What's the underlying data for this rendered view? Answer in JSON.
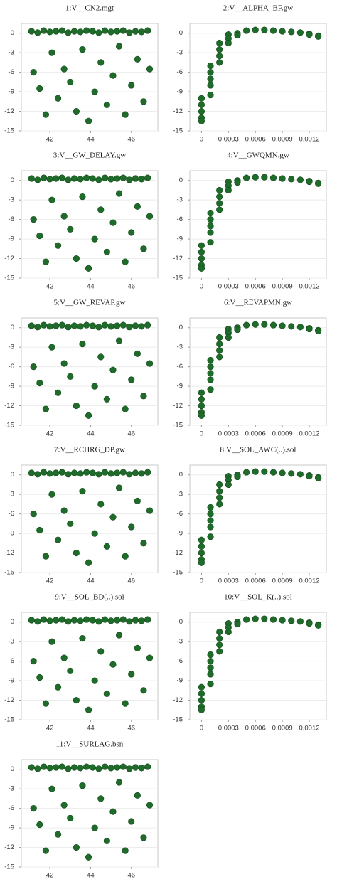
{
  "chart_data": [
    {
      "type": "scatter",
      "title": "1:V__CN2.mgt",
      "color": "#1e6b2a",
      "grid": true,
      "xlim": [
        40.6,
        47.3
      ],
      "ylim": [
        -15,
        1.5
      ],
      "xticks": [
        42,
        44,
        46
      ],
      "yticks": [
        0,
        -3,
        -6,
        -9,
        -12,
        -15
      ],
      "x": [
        41.1,
        41.4,
        41.7,
        42,
        42.3,
        42.6,
        42.9,
        43.2,
        43.5,
        43.8,
        44.1,
        44.4,
        44.7,
        45,
        45.3,
        45.6,
        45.9,
        46.2,
        46.5,
        46.8,
        41.2,
        41.5,
        41.8,
        42.1,
        42.4,
        42.7,
        43,
        43.3,
        43.6,
        43.9,
        44.2,
        44.5,
        44.8,
        45.1,
        45.4,
        45.7,
        46,
        46.3,
        46.6,
        46.9
      ],
      "values": [
        0.3,
        0.1,
        0.4,
        0.2,
        0.3,
        0.4,
        0.1,
        0.3,
        0.2,
        0.4,
        0.3,
        0.1,
        0.4,
        0.2,
        0.3,
        0.4,
        0.1,
        0.3,
        0.2,
        0.4,
        -6,
        -8.5,
        -12.5,
        -3,
        -10,
        -5.5,
        -7.5,
        -12,
        -2.5,
        -13.5,
        -9,
        -4.5,
        -11,
        -6.5,
        -2,
        -12.5,
        -8,
        -4,
        -10.5,
        -5.5
      ]
    },
    {
      "type": "scatter",
      "title": "2:V__ALPHA_BF.gw",
      "color": "#1e6b2a",
      "grid": true,
      "xlim": [
        -0.00013,
        0.00139
      ],
      "ylim": [
        -15,
        1.5
      ],
      "xticks": [
        0,
        0.0003,
        0.0006,
        0.0009,
        0.0012
      ],
      "yticks": [
        0,
        -3,
        -6,
        -9,
        -12,
        -15
      ],
      "x": [
        0,
        0,
        0,
        0,
        0,
        0.0001,
        0.0001,
        0.0001,
        0.0001,
        0.0001,
        0.0002,
        0.0002,
        0.0002,
        0.0002,
        0.0003,
        0.0003,
        0.0003,
        0.0004,
        0.0004,
        0.0005,
        0.0006,
        0.0007,
        0.0008,
        0.0009,
        0.001,
        0.0011,
        0.0012,
        0.0012,
        0.0013,
        0.0013
      ],
      "values": [
        -10,
        -11,
        -12,
        -13,
        -13.5,
        -5,
        -6,
        -7,
        -8,
        -9.5,
        -1.5,
        -2.5,
        -3.5,
        -4.5,
        -0.2,
        -0.8,
        -1.5,
        0,
        -0.3,
        0.4,
        0.5,
        0.5,
        0.4,
        0.3,
        0.2,
        0.1,
        -0.1,
        -0.2,
        -0.4,
        -0.5
      ]
    },
    {
      "type": "scatter",
      "title": "3:V__GW_DELAY.gw",
      "color": "#1e6b2a",
      "grid": true,
      "xlim": [
        40.6,
        47.3
      ],
      "ylim": [
        -15,
        1.5
      ],
      "xticks": [
        42,
        44,
        46
      ],
      "yticks": [
        0,
        -3,
        -6,
        -9,
        -12,
        -15
      ],
      "x": [
        41.1,
        41.4,
        41.7,
        42,
        42.3,
        42.6,
        42.9,
        43.2,
        43.5,
        43.8,
        44.1,
        44.4,
        44.7,
        45,
        45.3,
        45.6,
        45.9,
        46.2,
        46.5,
        46.8,
        41.2,
        41.5,
        41.8,
        42.1,
        42.4,
        42.7,
        43,
        43.3,
        43.6,
        43.9,
        44.2,
        44.5,
        44.8,
        45.1,
        45.4,
        45.7,
        46,
        46.3,
        46.6,
        46.9
      ],
      "values": [
        0.3,
        0.1,
        0.4,
        0.2,
        0.3,
        0.4,
        0.1,
        0.3,
        0.2,
        0.4,
        0.3,
        0.1,
        0.4,
        0.2,
        0.3,
        0.4,
        0.1,
        0.3,
        0.2,
        0.4,
        -6,
        -8.5,
        -12.5,
        -3,
        -10,
        -5.5,
        -7.5,
        -12,
        -2.5,
        -13.5,
        -9,
        -4.5,
        -11,
        -6.5,
        -2,
        -12.5,
        -8,
        -4,
        -10.5,
        -5.5
      ]
    },
    {
      "type": "scatter",
      "title": "4:V__GWQMN.gw",
      "color": "#1e6b2a",
      "grid": true,
      "xlim": [
        -0.00013,
        0.00139
      ],
      "ylim": [
        -15,
        1.5
      ],
      "xticks": [
        0,
        0.0003,
        0.0006,
        0.0009,
        0.0012
      ],
      "yticks": [
        0,
        -3,
        -6,
        -9,
        -12,
        -15
      ],
      "x": [
        0,
        0,
        0,
        0,
        0,
        0.0001,
        0.0001,
        0.0001,
        0.0001,
        0.0001,
        0.0002,
        0.0002,
        0.0002,
        0.0002,
        0.0003,
        0.0003,
        0.0003,
        0.0004,
        0.0004,
        0.0005,
        0.0006,
        0.0007,
        0.0008,
        0.0009,
        0.001,
        0.0011,
        0.0012,
        0.0012,
        0.0013,
        0.0013
      ],
      "values": [
        -10,
        -11,
        -12,
        -13,
        -13.5,
        -5,
        -6,
        -7,
        -8,
        -9.5,
        -1.5,
        -2.5,
        -3.5,
        -4.5,
        -0.2,
        -0.8,
        -1.5,
        0,
        -0.3,
        0.4,
        0.5,
        0.5,
        0.4,
        0.3,
        0.2,
        0.1,
        -0.1,
        -0.2,
        -0.4,
        -0.5
      ]
    },
    {
      "type": "scatter",
      "title": "5:V__GW_REVAP.gw",
      "color": "#1e6b2a",
      "grid": true,
      "xlim": [
        40.6,
        47.3
      ],
      "ylim": [
        -15,
        1.5
      ],
      "xticks": [
        42,
        44,
        46
      ],
      "yticks": [
        0,
        -3,
        -6,
        -9,
        -12,
        -15
      ],
      "x": [
        41.1,
        41.4,
        41.7,
        42,
        42.3,
        42.6,
        42.9,
        43.2,
        43.5,
        43.8,
        44.1,
        44.4,
        44.7,
        45,
        45.3,
        45.6,
        45.9,
        46.2,
        46.5,
        46.8,
        41.2,
        41.5,
        41.8,
        42.1,
        42.4,
        42.7,
        43,
        43.3,
        43.6,
        43.9,
        44.2,
        44.5,
        44.8,
        45.1,
        45.4,
        45.7,
        46,
        46.3,
        46.6,
        46.9
      ],
      "values": [
        0.3,
        0.1,
        0.4,
        0.2,
        0.3,
        0.4,
        0.1,
        0.3,
        0.2,
        0.4,
        0.3,
        0.1,
        0.4,
        0.2,
        0.3,
        0.4,
        0.1,
        0.3,
        0.2,
        0.4,
        -6,
        -8.5,
        -12.5,
        -3,
        -10,
        -5.5,
        -7.5,
        -12,
        -2.5,
        -13.5,
        -9,
        -4.5,
        -11,
        -6.5,
        -2,
        -12.5,
        -8,
        -4,
        -10.5,
        -5.5
      ]
    },
    {
      "type": "scatter",
      "title": "6:V__REVAPMN.gw",
      "color": "#1e6b2a",
      "grid": true,
      "xlim": [
        -0.00013,
        0.00139
      ],
      "ylim": [
        -15,
        1.5
      ],
      "xticks": [
        0,
        0.0003,
        0.0006,
        0.0009,
        0.0012
      ],
      "yticks": [
        0,
        -3,
        -6,
        -9,
        -12,
        -15
      ],
      "x": [
        0,
        0,
        0,
        0,
        0,
        0.0001,
        0.0001,
        0.0001,
        0.0001,
        0.0001,
        0.0002,
        0.0002,
        0.0002,
        0.0002,
        0.0003,
        0.0003,
        0.0003,
        0.0004,
        0.0004,
        0.0005,
        0.0006,
        0.0007,
        0.0008,
        0.0009,
        0.001,
        0.0011,
        0.0012,
        0.0012,
        0.0013,
        0.0013
      ],
      "values": [
        -10,
        -11,
        -12,
        -13,
        -13.5,
        -5,
        -6,
        -7,
        -8,
        -9.5,
        -1.5,
        -2.5,
        -3.5,
        -4.5,
        -0.2,
        -0.8,
        -1.5,
        0,
        -0.3,
        0.4,
        0.5,
        0.5,
        0.4,
        0.3,
        0.2,
        0.1,
        -0.1,
        -0.2,
        -0.4,
        -0.5
      ]
    },
    {
      "type": "scatter",
      "title": "7:V__RCHRG_DP.gw",
      "color": "#1e6b2a",
      "grid": true,
      "xlim": [
        40.6,
        47.3
      ],
      "ylim": [
        -15,
        1.5
      ],
      "xticks": [
        42,
        44,
        46
      ],
      "yticks": [
        0,
        -3,
        -6,
        -9,
        -12,
        -15
      ],
      "x": [
        41.1,
        41.4,
        41.7,
        42,
        42.3,
        42.6,
        42.9,
        43.2,
        43.5,
        43.8,
        44.1,
        44.4,
        44.7,
        45,
        45.3,
        45.6,
        45.9,
        46.2,
        46.5,
        46.8,
        41.2,
        41.5,
        41.8,
        42.1,
        42.4,
        42.7,
        43,
        43.3,
        43.6,
        43.9,
        44.2,
        44.5,
        44.8,
        45.1,
        45.4,
        45.7,
        46,
        46.3,
        46.6,
        46.9
      ],
      "values": [
        0.3,
        0.1,
        0.4,
        0.2,
        0.3,
        0.4,
        0.1,
        0.3,
        0.2,
        0.4,
        0.3,
        0.1,
        0.4,
        0.2,
        0.3,
        0.4,
        0.1,
        0.3,
        0.2,
        0.4,
        -6,
        -8.5,
        -12.5,
        -3,
        -10,
        -5.5,
        -7.5,
        -12,
        -2.5,
        -13.5,
        -9,
        -4.5,
        -11,
        -6.5,
        -2,
        -12.5,
        -8,
        -4,
        -10.5,
        -5.5
      ]
    },
    {
      "type": "scatter",
      "title": "8:V__SOL_AWC(..).sol",
      "color": "#1e6b2a",
      "grid": true,
      "xlim": [
        -0.00013,
        0.00139
      ],
      "ylim": [
        -15,
        1.5
      ],
      "xticks": [
        0,
        0.0003,
        0.0006,
        0.0009,
        0.0012
      ],
      "yticks": [
        0,
        -3,
        -6,
        -9,
        -12,
        -15
      ],
      "x": [
        0,
        0,
        0,
        0,
        0,
        0.0001,
        0.0001,
        0.0001,
        0.0001,
        0.0001,
        0.0002,
        0.0002,
        0.0002,
        0.0002,
        0.0003,
        0.0003,
        0.0003,
        0.0004,
        0.0004,
        0.0005,
        0.0006,
        0.0007,
        0.0008,
        0.0009,
        0.001,
        0.0011,
        0.0012,
        0.0012,
        0.0013,
        0.0013
      ],
      "values": [
        -10,
        -11,
        -12,
        -13,
        -13.5,
        -5,
        -6,
        -7,
        -8,
        -9.5,
        -1.5,
        -2.5,
        -3.5,
        -4.5,
        -0.2,
        -0.8,
        -1.5,
        0,
        -0.3,
        0.4,
        0.5,
        0.5,
        0.4,
        0.3,
        0.2,
        0.1,
        -0.1,
        -0.2,
        -0.4,
        -0.5
      ]
    },
    {
      "type": "scatter",
      "title": "9:V__SOL_BD(..).sol",
      "color": "#1e6b2a",
      "grid": true,
      "xlim": [
        40.6,
        47.3
      ],
      "ylim": [
        -15,
        1.5
      ],
      "xticks": [
        42,
        44,
        46
      ],
      "yticks": [
        0,
        -3,
        -6,
        -9,
        -12,
        -15
      ],
      "x": [
        41.1,
        41.4,
        41.7,
        42,
        42.3,
        42.6,
        42.9,
        43.2,
        43.5,
        43.8,
        44.1,
        44.4,
        44.7,
        45,
        45.3,
        45.6,
        45.9,
        46.2,
        46.5,
        46.8,
        41.2,
        41.5,
        41.8,
        42.1,
        42.4,
        42.7,
        43,
        43.3,
        43.6,
        43.9,
        44.2,
        44.5,
        44.8,
        45.1,
        45.4,
        45.7,
        46,
        46.3,
        46.6,
        46.9
      ],
      "values": [
        0.3,
        0.1,
        0.4,
        0.2,
        0.3,
        0.4,
        0.1,
        0.3,
        0.2,
        0.4,
        0.3,
        0.1,
        0.4,
        0.2,
        0.3,
        0.4,
        0.1,
        0.3,
        0.2,
        0.4,
        -6,
        -8.5,
        -12.5,
        -3,
        -10,
        -5.5,
        -7.5,
        -12,
        -2.5,
        -13.5,
        -9,
        -4.5,
        -11,
        -6.5,
        -2,
        -12.5,
        -8,
        -4,
        -10.5,
        -5.5
      ]
    },
    {
      "type": "scatter",
      "title": "10:V__SOL_K(..).sol",
      "color": "#1e6b2a",
      "grid": true,
      "xlim": [
        -0.00013,
        0.00139
      ],
      "ylim": [
        -15,
        1.5
      ],
      "xticks": [
        0,
        0.0003,
        0.0006,
        0.0009,
        0.0012
      ],
      "yticks": [
        0,
        -3,
        -6,
        -9,
        -12,
        -15
      ],
      "x": [
        0,
        0,
        0,
        0,
        0,
        0.0001,
        0.0001,
        0.0001,
        0.0001,
        0.0001,
        0.0002,
        0.0002,
        0.0002,
        0.0002,
        0.0003,
        0.0003,
        0.0003,
        0.0004,
        0.0004,
        0.0005,
        0.0006,
        0.0007,
        0.0008,
        0.0009,
        0.001,
        0.0011,
        0.0012,
        0.0012,
        0.0013,
        0.0013
      ],
      "values": [
        -10,
        -11,
        -12,
        -13,
        -13.5,
        -5,
        -6,
        -7,
        -8,
        -9.5,
        -1.5,
        -2.5,
        -3.5,
        -4.5,
        -0.2,
        -0.8,
        -1.5,
        0,
        -0.3,
        0.4,
        0.5,
        0.5,
        0.4,
        0.3,
        0.2,
        0.1,
        -0.1,
        -0.2,
        -0.4,
        -0.5
      ]
    },
    {
      "type": "scatter",
      "title": "11:V__SURLAG.bsn",
      "color": "#1e6b2a",
      "grid": true,
      "xlim": [
        40.6,
        47.3
      ],
      "ylim": [
        -15,
        1.5
      ],
      "xticks": [
        42,
        44,
        46
      ],
      "yticks": [
        0,
        -3,
        -6,
        -9,
        -12,
        -15
      ],
      "x": [
        41.1,
        41.4,
        41.7,
        42,
        42.3,
        42.6,
        42.9,
        43.2,
        43.5,
        43.8,
        44.1,
        44.4,
        44.7,
        45,
        45.3,
        45.6,
        45.9,
        46.2,
        46.5,
        46.8,
        41.2,
        41.5,
        41.8,
        42.1,
        42.4,
        42.7,
        43,
        43.3,
        43.6,
        43.9,
        44.2,
        44.5,
        44.8,
        45.1,
        45.4,
        45.7,
        46,
        46.3,
        46.6,
        46.9
      ],
      "values": [
        0.3,
        0.1,
        0.4,
        0.2,
        0.3,
        0.4,
        0.1,
        0.3,
        0.2,
        0.4,
        0.3,
        0.1,
        0.4,
        0.2,
        0.3,
        0.4,
        0.1,
        0.3,
        0.2,
        0.4,
        -6,
        -8.5,
        -12.5,
        -3,
        -10,
        -5.5,
        -7.5,
        -12,
        -2.5,
        -13.5,
        -9,
        -4.5,
        -11,
        -6.5,
        -2,
        -12.5,
        -8,
        -4,
        -10.5,
        -5.5
      ]
    }
  ]
}
